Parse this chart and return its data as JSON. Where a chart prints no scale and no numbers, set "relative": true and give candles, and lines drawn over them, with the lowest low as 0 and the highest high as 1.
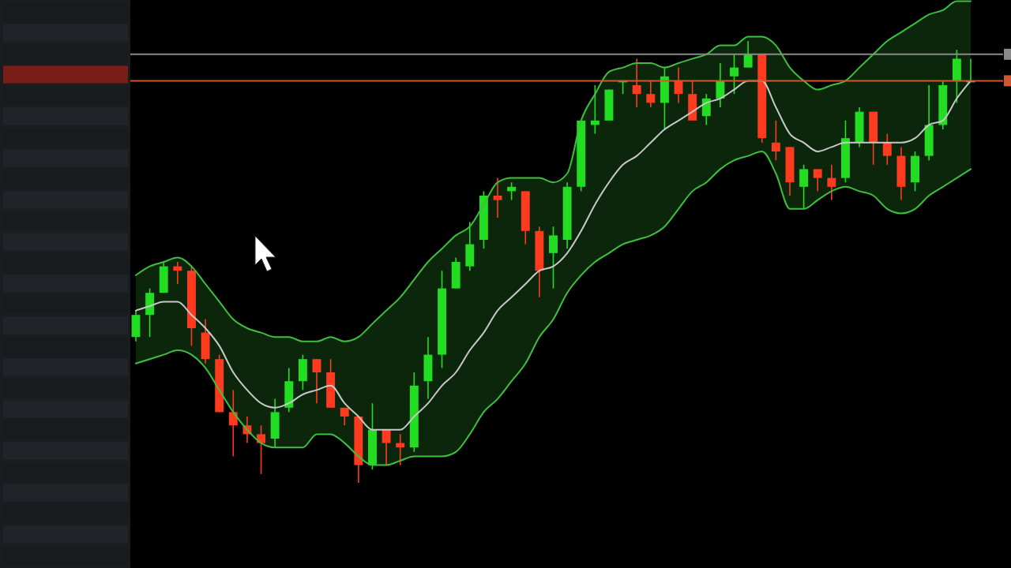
{
  "chart_data": {
    "type": "candlestick",
    "relative": true,
    "categories": [
      null,
      null,
      null,
      null,
      null,
      null,
      null,
      null,
      null,
      null,
      null,
      null,
      null,
      null,
      null,
      null,
      null,
      null,
      null,
      null,
      null,
      null,
      null,
      null,
      null,
      null,
      null,
      null,
      null,
      null,
      null,
      null,
      null,
      null,
      null,
      null,
      null,
      null,
      null,
      null,
      null,
      null,
      null,
      null,
      null,
      null,
      null,
      null,
      null,
      null,
      null,
      null,
      null,
      null,
      null,
      null,
      null,
      null,
      null,
      null,
      null
    ],
    "ohlc": [
      [
        0.33,
        0.39,
        0.32,
        0.38
      ],
      [
        0.38,
        0.44,
        0.33,
        0.43
      ],
      [
        0.43,
        0.5,
        0.43,
        0.49
      ],
      [
        0.49,
        0.5,
        0.45,
        0.48
      ],
      [
        0.48,
        0.49,
        0.31,
        0.35
      ],
      [
        0.34,
        0.37,
        0.27,
        0.28
      ],
      [
        0.28,
        0.29,
        0.16,
        0.16
      ],
      [
        0.16,
        0.21,
        0.06,
        0.13
      ],
      [
        0.13,
        0.15,
        0.09,
        0.11
      ],
      [
        0.11,
        0.13,
        0.02,
        0.09
      ],
      [
        0.1,
        0.19,
        0.08,
        0.16
      ],
      [
        0.17,
        0.26,
        0.16,
        0.23
      ],
      [
        0.23,
        0.29,
        0.21,
        0.28
      ],
      [
        0.28,
        0.28,
        0.18,
        0.25
      ],
      [
        0.25,
        0.28,
        0.17,
        0.17
      ],
      [
        0.17,
        0.17,
        0.13,
        0.15
      ],
      [
        0.15,
        0.15,
        0,
        0.04
      ],
      [
        0.04,
        0.18,
        0.03,
        0.12
      ],
      [
        0.12,
        0.12,
        0.04,
        0.09
      ],
      [
        0.09,
        0.11,
        0.04,
        0.08
      ],
      [
        0.08,
        0.25,
        0.07,
        0.22
      ],
      [
        0.23,
        0.33,
        0.19,
        0.29
      ],
      [
        0.29,
        0.48,
        0.26,
        0.44
      ],
      [
        0.44,
        0.51,
        0.44,
        0.5
      ],
      [
        0.49,
        0.59,
        0.48,
        0.54
      ],
      [
        0.55,
        0.66,
        0.53,
        0.65
      ],
      [
        0.65,
        0.69,
        0.6,
        0.64
      ],
      [
        0.66,
        0.68,
        0.64,
        0.67
      ],
      [
        0.66,
        0.66,
        0.54,
        0.57
      ],
      [
        0.57,
        0.58,
        0.42,
        0.48
      ],
      [
        0.52,
        0.58,
        0.44,
        0.56
      ],
      [
        0.55,
        0.68,
        0.53,
        0.67
      ],
      [
        0.67,
        0.82,
        0.66,
        0.82
      ],
      [
        0.81,
        0.9,
        0.79,
        0.82
      ],
      [
        0.82,
        0.89,
        0.82,
        0.89
      ],
      [
        0.91,
        0.91,
        0.88,
        0.91
      ],
      [
        0.9,
        0.96,
        0.85,
        0.88
      ],
      [
        0.88,
        0.91,
        0.85,
        0.86
      ],
      [
        0.86,
        0.94,
        0.8,
        0.92
      ],
      [
        0.91,
        0.94,
        0.86,
        0.88
      ],
      [
        0.88,
        0.91,
        0.82,
        0.82
      ],
      [
        0.83,
        0.88,
        0.81,
        0.87
      ],
      [
        0.87,
        0.95,
        0.85,
        0.91
      ],
      [
        0.92,
        0.97,
        0.88,
        0.94
      ],
      [
        0.94,
        1,
        0.94,
        0.97
      ],
      [
        0.97,
        0.97,
        0.77,
        0.78
      ],
      [
        0.77,
        0.82,
        0.73,
        0.75
      ],
      [
        0.76,
        0.76,
        0.65,
        0.68
      ],
      [
        0.67,
        0.72,
        0.62,
        0.71
      ],
      [
        0.71,
        0.71,
        0.66,
        0.69
      ],
      [
        0.69,
        0.72,
        0.64,
        0.67
      ],
      [
        0.69,
        0.82,
        0.68,
        0.78
      ],
      [
        0.77,
        0.85,
        0.76,
        0.84
      ],
      [
        0.84,
        0.84,
        0.72,
        0.77
      ],
      [
        0.77,
        0.79,
        0.72,
        0.74
      ],
      [
        0.74,
        0.76,
        0.64,
        0.67
      ],
      [
        0.68,
        0.75,
        0.66,
        0.74
      ],
      [
        0.74,
        0.9,
        0.73,
        0.81
      ],
      [
        0.81,
        0.91,
        0.8,
        0.9
      ],
      [
        0.91,
        0.98,
        0.86,
        0.96
      ],
      [
        0.91,
        0.96,
        0.91,
        0.91
      ]
    ],
    "colors": [
      "#22dd22",
      "#22dd22",
      "#22dd22",
      "#ff3b1f",
      "#ff3b1f",
      "#ff3b1f",
      "#ff3b1f",
      "#ff3b1f",
      "#ff3b1f",
      "#ff3b1f",
      "#22dd22",
      "#22dd22",
      "#22dd22",
      "#ff3b1f",
      "#ff3b1f",
      "#ff3b1f",
      "#ff3b1f",
      "#22dd22",
      "#ff3b1f",
      "#ff3b1f",
      "#22dd22",
      "#22dd22",
      "#22dd22",
      "#22dd22",
      "#22dd22",
      "#22dd22",
      "#ff3b1f",
      "#22dd22",
      "#ff3b1f",
      "#ff3b1f",
      "#22dd22",
      "#22dd22",
      "#22dd22",
      "#22dd22",
      "#22dd22",
      "#22dd22",
      "#ff3b1f",
      "#ff3b1f",
      "#22dd22",
      "#ff3b1f",
      "#ff3b1f",
      "#22dd22",
      "#22dd22",
      "#22dd22",
      "#22dd22",
      "#ff3b1f",
      "#ff3b1f",
      "#ff3b1f",
      "#22dd22",
      "#ff3b1f",
      "#ff3b1f",
      "#22dd22",
      "#22dd22",
      "#ff3b1f",
      "#ff3b1f",
      "#ff3b1f",
      "#22dd22",
      "#22dd22",
      "#22dd22",
      "#22dd22",
      "#22dd22"
    ],
    "series": [
      {
        "type": "line",
        "color": "#c8c8c8",
        "values": [
          0.39,
          0.4,
          0.41,
          0.41,
          0.38,
          0.35,
          0.31,
          0.25,
          0.21,
          0.18,
          0.17,
          0.18,
          0.2,
          0.21,
          0.22,
          0.18,
          0.15,
          0.12,
          0.12,
          0.12,
          0.15,
          0.18,
          0.22,
          0.25,
          0.3,
          0.34,
          0.39,
          0.42,
          0.45,
          0.48,
          0.49,
          0.52,
          0.57,
          0.63,
          0.68,
          0.72,
          0.74,
          0.77,
          0.8,
          0.82,
          0.84,
          0.86,
          0.87,
          0.89,
          0.91,
          0.91,
          0.85,
          0.79,
          0.77,
          0.75,
          0.76,
          0.77,
          0.77,
          0.77,
          0.77,
          0.77,
          0.78,
          0.81,
          0.82,
          0.87,
          0.91
        ],
        "upper": [
          0.47,
          0.49,
          0.5,
          0.51,
          0.49,
          0.45,
          0.41,
          0.37,
          0.35,
          0.34,
          0.33,
          0.33,
          0.32,
          0.32,
          0.33,
          0.32,
          0.33,
          0.36,
          0.39,
          0.42,
          0.46,
          0.5,
          0.53,
          0.56,
          0.58,
          0.63,
          0.68,
          0.69,
          0.69,
          0.69,
          0.68,
          0.7,
          0.82,
          0.88,
          0.93,
          0.94,
          0.95,
          0.95,
          0.94,
          0.95,
          0.96,
          0.97,
          0.99,
          0.99,
          1.01,
          1.01,
          0.99,
          0.94,
          0.91,
          0.89,
          0.9,
          0.91,
          0.94,
          0.97,
          1.0,
          1.02,
          1.04,
          1.06,
          1.07,
          1.09,
          1.09
        ],
        "lower": [
          0.27,
          0.28,
          0.29,
          0.3,
          0.29,
          0.26,
          0.21,
          0.16,
          0.12,
          0.09,
          0.08,
          0.08,
          0.08,
          0.11,
          0.11,
          0.09,
          0.06,
          0.04,
          0.04,
          0.05,
          0.06,
          0.06,
          0.06,
          0.07,
          0.11,
          0.16,
          0.19,
          0.23,
          0.27,
          0.33,
          0.37,
          0.43,
          0.47,
          0.5,
          0.52,
          0.54,
          0.55,
          0.56,
          0.58,
          0.62,
          0.66,
          0.68,
          0.71,
          0.73,
          0.74,
          0.75,
          0.7,
          0.62,
          0.62,
          0.64,
          0.66,
          0.67,
          0.66,
          0.65,
          0.62,
          0.61,
          0.62,
          0.65,
          0.67,
          0.69,
          0.71
        ]
      },
      {
        "type": "line",
        "color": "#3fbf3f",
        "values": [
          0.47,
          0.49,
          0.5,
          0.51,
          0.49,
          0.45,
          0.41,
          0.37,
          0.35,
          0.34,
          0.33,
          0.33,
          0.32,
          0.32,
          0.33,
          0.32,
          0.33,
          0.36,
          0.39,
          0.42,
          0.46,
          0.5,
          0.53,
          0.56,
          0.58,
          0.63,
          0.68,
          0.69,
          0.69,
          0.69,
          0.68,
          0.7,
          0.82,
          0.88,
          0.93,
          0.94,
          0.95,
          0.95,
          0.94,
          0.95,
          0.96,
          0.97,
          0.99,
          0.99,
          1.01,
          1.01,
          0.99,
          0.94,
          0.91,
          0.89,
          0.9,
          0.91,
          0.94,
          0.97,
          1.0,
          1.02,
          1.04,
          1.06,
          1.07,
          1.09,
          1.09
        ]
      },
      {
        "type": "line",
        "color": "#3fbf3f",
        "values": [
          0.27,
          0.28,
          0.29,
          0.3,
          0.29,
          0.26,
          0.21,
          0.16,
          0.12,
          0.09,
          0.08,
          0.08,
          0.08,
          0.11,
          0.11,
          0.09,
          0.06,
          0.04,
          0.04,
          0.05,
          0.06,
          0.06,
          0.06,
          0.07,
          0.11,
          0.16,
          0.19,
          0.23,
          0.27,
          0.33,
          0.37,
          0.43,
          0.47,
          0.5,
          0.52,
          0.54,
          0.55,
          0.56,
          0.58,
          0.62,
          0.66,
          0.68,
          0.71,
          0.73,
          0.74,
          0.75,
          0.7,
          0.62,
          0.62,
          0.64,
          0.66,
          0.67,
          0.66,
          0.65,
          0.62,
          0.61,
          0.62,
          0.65,
          0.67,
          0.69,
          0.71
        ]
      }
    ],
    "ref_lines": [
      {
        "axis": "y",
        "value": 0.97,
        "color": "#8a8a8a"
      },
      {
        "axis": "y",
        "value": 0.91,
        "color": "#d0562e"
      }
    ]
  }
}
